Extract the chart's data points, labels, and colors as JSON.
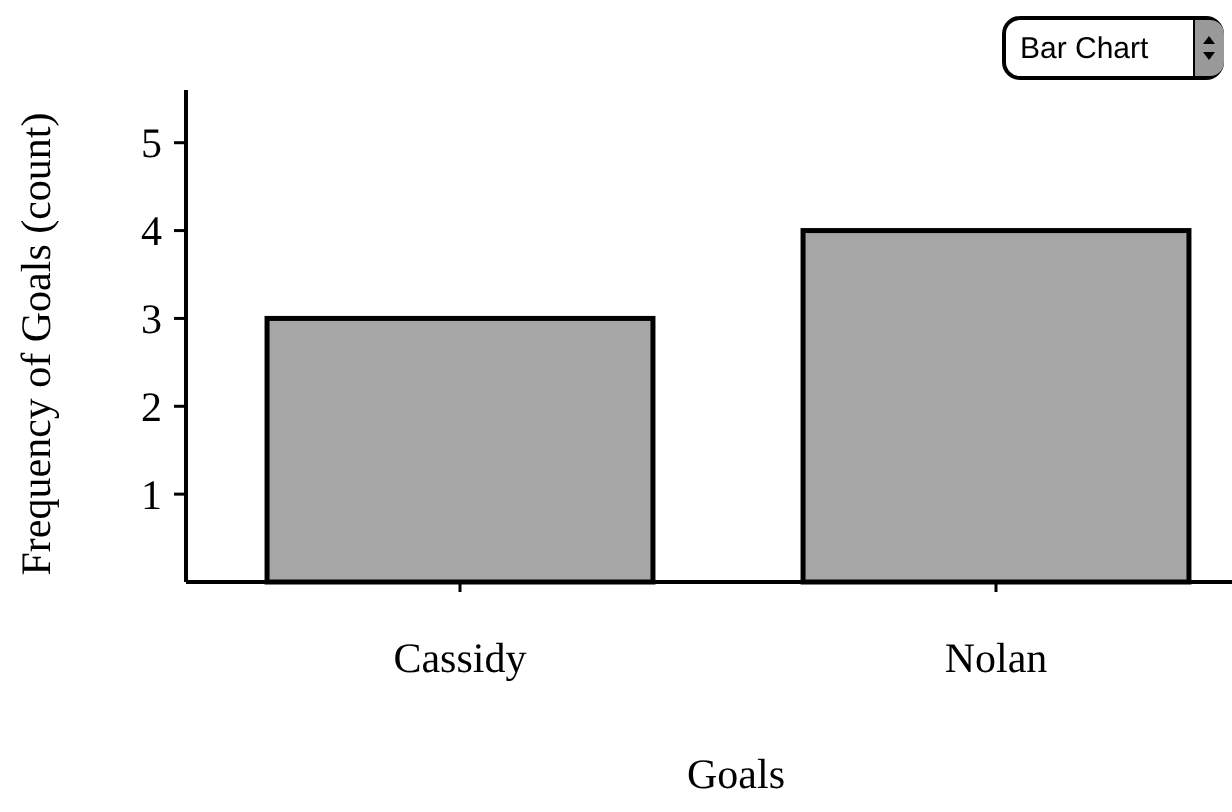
{
  "chart_data": {
    "type": "bar",
    "xlabel": "Goals",
    "ylabel": "Frequency of Goals (count)",
    "categories": [
      "Cassidy",
      "Nolan"
    ],
    "values": [
      3,
      4
    ],
    "color": "#a6a6a6",
    "ylim": [
      0,
      5.6
    ],
    "yticks": [
      1,
      2,
      3,
      4,
      5
    ],
    "annotations": [
      "Bar Chart"
    ]
  }
}
